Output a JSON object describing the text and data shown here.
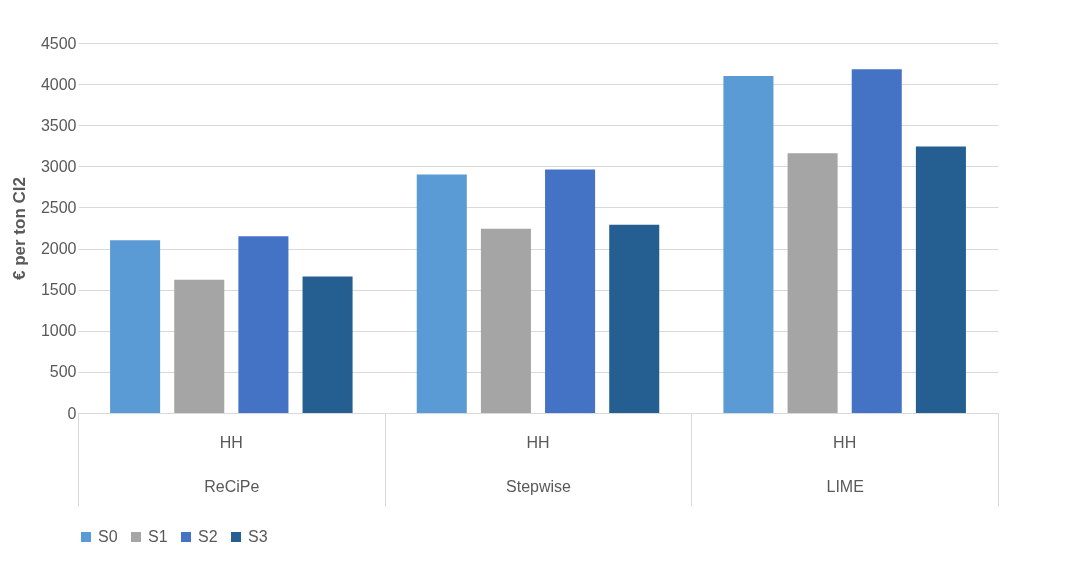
{
  "chart_data": {
    "type": "bar",
    "ylabel": "€ per ton Cl2",
    "categories": [
      "ReCiPe",
      "Stepwise",
      "LIME"
    ],
    "annotations": [
      "HH",
      "HH",
      "HH"
    ],
    "series": [
      {
        "name": "S0",
        "color": "#5b9bd5",
        "values": [
          2100,
          2900,
          4100
        ]
      },
      {
        "name": "S1",
        "color": "#a5a5a5",
        "values": [
          1620,
          2240,
          3160
        ]
      },
      {
        "name": "S2",
        "color": "#4472c4",
        "values": [
          2150,
          2960,
          4180
        ]
      },
      {
        "name": "S3",
        "color": "#255e91",
        "values": [
          1660,
          2290,
          3240
        ]
      }
    ],
    "ylim": [
      0,
      4500
    ],
    "yticks": [
      0,
      500,
      1000,
      1500,
      2000,
      2500,
      3000,
      3500,
      4000,
      4500
    ],
    "grid": "y",
    "legend": "bottom"
  }
}
